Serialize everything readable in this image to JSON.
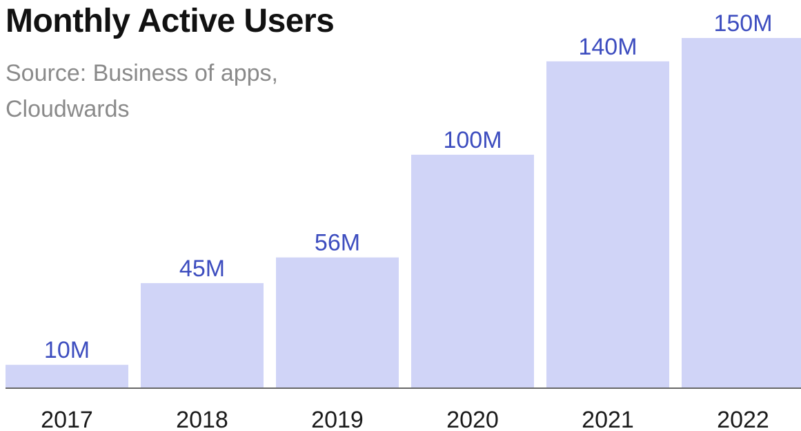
{
  "chart_data": {
    "type": "bar",
    "title": "Monthly Active Users",
    "subtitle": "Source: Business of apps, Cloudwards",
    "categories": [
      "2017",
      "2018",
      "2019",
      "2020",
      "2021",
      "2022"
    ],
    "values": [
      10,
      45,
      56,
      100,
      140,
      150
    ],
    "value_labels": [
      "10M",
      "45M",
      "56M",
      "100M",
      "140M",
      "150M"
    ],
    "xlabel": "",
    "ylabel": "",
    "ylim": [
      0,
      150
    ],
    "grid": false,
    "legend": "none"
  },
  "colors": {
    "bar": "#d0d4f7",
    "value_label": "#3d4dbf",
    "tick_label": "#1a1a1a",
    "axis": "#666666",
    "title": "#111111",
    "subtitle": "#8a8a8a"
  }
}
